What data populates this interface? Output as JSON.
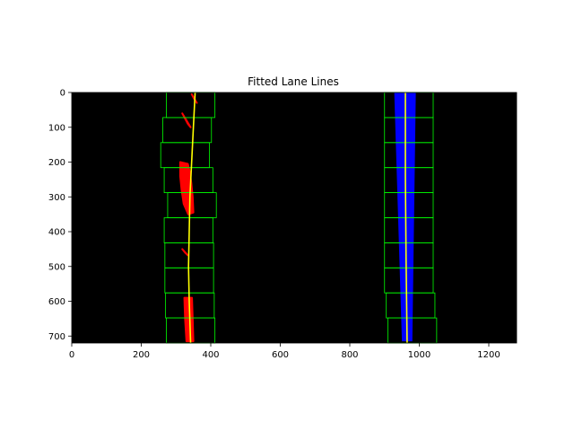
{
  "chart_data": {
    "type": "scatter",
    "title": "Fitted Lane Lines",
    "xlabel": "",
    "ylabel": "",
    "xlim": [
      0,
      1280
    ],
    "ylim": [
      720,
      0
    ],
    "xticks": [
      0,
      200,
      400,
      600,
      800,
      1000,
      1200
    ],
    "yticks": [
      0,
      100,
      200,
      300,
      400,
      500,
      600,
      700
    ],
    "background": "#000000",
    "grid": false,
    "colors": {
      "left_pixels": "#ff0000",
      "right_pixels": "#0000ff",
      "fit_line": "#ffff00",
      "window": "#00ff00"
    },
    "windows": {
      "left": [
        {
          "x0": 272,
          "x1": 412,
          "y0": 0,
          "y1": 72
        },
        {
          "x0": 262,
          "x1": 402,
          "y0": 72,
          "y1": 144
        },
        {
          "x0": 256,
          "x1": 396,
          "y0": 144,
          "y1": 216
        },
        {
          "x0": 266,
          "x1": 406,
          "y0": 216,
          "y1": 288
        },
        {
          "x0": 276,
          "x1": 416,
          "y0": 288,
          "y1": 360
        },
        {
          "x0": 266,
          "x1": 406,
          "y0": 360,
          "y1": 432
        },
        {
          "x0": 268,
          "x1": 408,
          "y0": 432,
          "y1": 504
        },
        {
          "x0": 268,
          "x1": 408,
          "y0": 504,
          "y1": 576
        },
        {
          "x0": 270,
          "x1": 410,
          "y0": 576,
          "y1": 648
        },
        {
          "x0": 272,
          "x1": 412,
          "y0": 648,
          "y1": 720
        }
      ],
      "right": [
        {
          "x0": 900,
          "x1": 1040,
          "y0": 0,
          "y1": 72
        },
        {
          "x0": 900,
          "x1": 1040,
          "y0": 72,
          "y1": 144
        },
        {
          "x0": 900,
          "x1": 1040,
          "y0": 144,
          "y1": 216
        },
        {
          "x0": 900,
          "x1": 1040,
          "y0": 216,
          "y1": 288
        },
        {
          "x0": 900,
          "x1": 1040,
          "y0": 288,
          "y1": 360
        },
        {
          "x0": 900,
          "x1": 1040,
          "y0": 360,
          "y1": 432
        },
        {
          "x0": 900,
          "x1": 1040,
          "y0": 432,
          "y1": 504
        },
        {
          "x0": 900,
          "x1": 1040,
          "y0": 504,
          "y1": 576
        },
        {
          "x0": 905,
          "x1": 1045,
          "y0": 576,
          "y1": 648
        },
        {
          "x0": 910,
          "x1": 1050,
          "y0": 648,
          "y1": 720
        }
      ]
    },
    "left_pixel_clusters": [
      {
        "points": [
          [
            345,
            5
          ],
          [
            352,
            18
          ],
          [
            360,
            30
          ]
        ]
      },
      {
        "points": [
          [
            318,
            60
          ],
          [
            326,
            75
          ],
          [
            334,
            90
          ],
          [
            342,
            100
          ]
        ]
      },
      {
        "points": [
          [
            312,
            200
          ],
          [
            334,
            205
          ],
          [
            340,
            230
          ],
          [
            344,
            260
          ],
          [
            348,
            300
          ],
          [
            350,
            345
          ],
          [
            335,
            350
          ],
          [
            322,
            320
          ],
          [
            316,
            280
          ],
          [
            312,
            240
          ]
        ]
      },
      {
        "points": [
          [
            318,
            450
          ],
          [
            326,
            460
          ],
          [
            334,
            468
          ]
        ]
      },
      {
        "points": [
          [
            324,
            590
          ],
          [
            346,
            590
          ],
          [
            348,
            650
          ],
          [
            350,
            715
          ],
          [
            330,
            715
          ],
          [
            326,
            650
          ]
        ]
      }
    ],
    "right_pixel_band": {
      "top": [
        [
          928,
          0
        ],
        [
          990,
          0
        ]
      ],
      "bottom": [
        [
          980,
          715
        ],
        [
          950,
          715
        ]
      ]
    },
    "fit_left": [
      [
        355,
        0
      ],
      [
        350,
        100
      ],
      [
        345,
        200
      ],
      [
        340,
        300
      ],
      [
        338,
        400
      ],
      [
        336,
        500
      ],
      [
        338,
        600
      ],
      [
        342,
        720
      ]
    ],
    "fit_right": [
      [
        960,
        0
      ],
      [
        960,
        240
      ],
      [
        962,
        480
      ],
      [
        965,
        720
      ]
    ]
  }
}
